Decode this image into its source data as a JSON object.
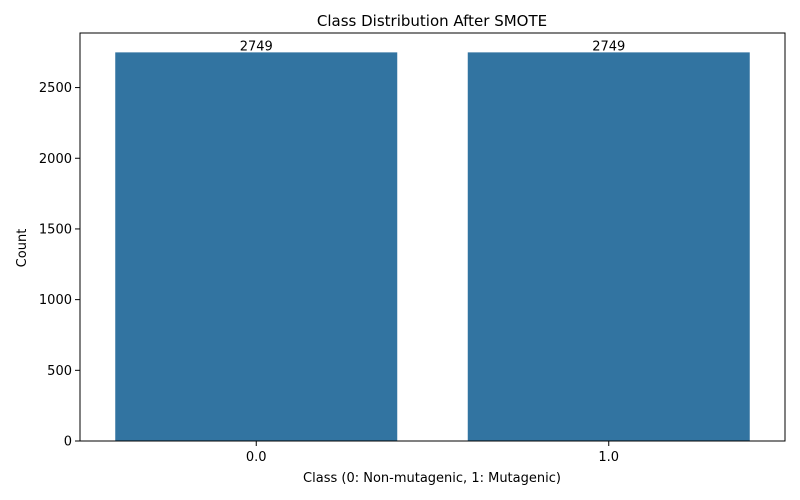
{
  "chart_data": {
    "type": "bar",
    "title": "Class Distribution After SMOTE",
    "xlabel": "Class (0: Non-mutagenic, 1: Mutagenic)",
    "ylabel": "Count",
    "categories": [
      "0.0",
      "1.0"
    ],
    "values": [
      2749,
      2749
    ],
    "data_labels": [
      "2749",
      "2749"
    ],
    "ylim": [
      0,
      2886
    ],
    "yticks": [
      0,
      500,
      1000,
      1500,
      2000,
      2500
    ],
    "ytick_labels": [
      "0",
      "500",
      "1000",
      "1500",
      "2000",
      "2500"
    ],
    "grid": false,
    "legend": "none",
    "bar_color": "#3274a1"
  }
}
